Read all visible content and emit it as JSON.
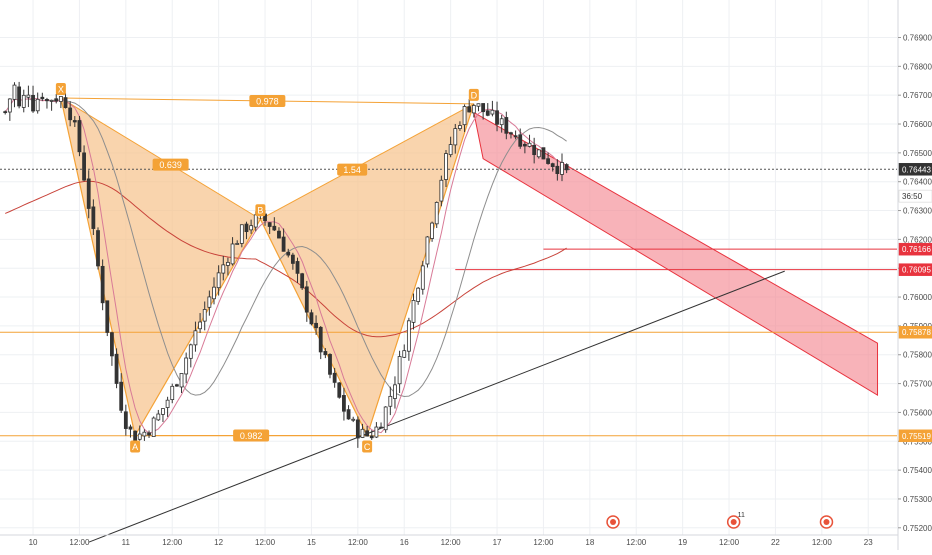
{
  "chart_data": {
    "type": "candlestick",
    "title": "",
    "xlabel": "",
    "ylabel": "",
    "ylim": [
      0.75175,
      0.7703
    ],
    "grid": true,
    "y_ticks": [
      "0.76900",
      "0.76800",
      "0.76700",
      "0.76600",
      "0.76500",
      "0.76400",
      "0.76300",
      "0.76200",
      "0.76100",
      "0.76000",
      "0.75900",
      "0.75800",
      "0.75700",
      "0.75600",
      "0.75500",
      "0.75400",
      "0.75300",
      "0.75200"
    ],
    "x_ticks": [
      {
        "label": "10",
        "i": 6
      },
      {
        "label": "12:00",
        "i": 16
      },
      {
        "label": "11",
        "i": 26
      },
      {
        "label": "12:00",
        "i": 36
      },
      {
        "label": "12",
        "i": 46
      },
      {
        "label": "12:00",
        "i": 56
      },
      {
        "label": "15",
        "i": 66
      },
      {
        "label": "12:00",
        "i": 76
      },
      {
        "label": "16",
        "i": 86
      },
      {
        "label": "12:00",
        "i": 96
      },
      {
        "label": "17",
        "i": 106
      },
      {
        "label": "12:00",
        "i": 116
      },
      {
        "label": "18",
        "i": 126
      },
      {
        "label": "12:00",
        "i": 136
      },
      {
        "label": "19",
        "i": 146
      },
      {
        "label": "12:00",
        "i": 156
      },
      {
        "label": "22",
        "i": 166
      },
      {
        "label": "12:00",
        "i": 176
      },
      {
        "label": "23",
        "i": 186
      }
    ],
    "anchors": [
      {
        "i": 12,
        "p": 0.7669
      },
      {
        "i": 28,
        "p": 0.7552
      },
      {
        "i": 55,
        "p": 0.7627
      },
      {
        "i": 78,
        "p": 0.7552
      },
      {
        "i": 101,
        "p": 0.7667
      }
    ],
    "candle_count": 122,
    "pattern": {
      "points": [
        {
          "label": "X",
          "i": 12,
          "p": 0.7669
        },
        {
          "label": "A",
          "i": 28,
          "p": 0.7552
        },
        {
          "label": "B",
          "i": 55,
          "p": 0.7627
        },
        {
          "label": "C",
          "i": 78,
          "p": 0.7552
        },
        {
          "label": "D",
          "i": 101,
          "p": 0.7667
        }
      ],
      "ratios": [
        {
          "text": "0.978",
          "from": "X",
          "to": "D"
        },
        {
          "text": "0.639",
          "from": "X",
          "to": "B"
        },
        {
          "text": "1.54",
          "from": "B",
          "to": "D"
        },
        {
          "text": "0.982",
          "from": "A",
          "to": "C"
        }
      ]
    },
    "moving_averages": [
      {
        "color": "#c8433a",
        "period": 55
      },
      {
        "color": "#8e8e8e",
        "period": 20
      },
      {
        "color": "#d87a97",
        "period": 6
      }
    ],
    "horizontal_levels": [
      {
        "price": 0.76443,
        "color": "#555555",
        "style": "dotted"
      },
      {
        "price": 0.76166,
        "color": "#e8333e",
        "style": "solid",
        "from_i": 116
      },
      {
        "price": 0.76095,
        "color": "#e8333e",
        "style": "solid",
        "from_i": 97
      },
      {
        "price": 0.75878,
        "color": "#f4a236",
        "style": "solid"
      },
      {
        "price": 0.75519,
        "color": "#f4a236",
        "style": "solid"
      }
    ],
    "price_labels": [
      {
        "text": "0.76443",
        "price": 0.76443,
        "bg": "#333333",
        "fg": "#ffffff"
      },
      {
        "text": "36:50",
        "price": 0.7635,
        "bg": "#ffffff",
        "fg": "#333333"
      },
      {
        "text": "0.76166",
        "price": 0.76166,
        "bg": "#e8333e",
        "fg": "#ffffff"
      },
      {
        "text": "0.76095",
        "price": 0.76095,
        "bg": "#e8333e",
        "fg": "#ffffff"
      },
      {
        "text": "0.75878",
        "price": 0.75878,
        "bg": "#f4a236",
        "fg": "#ffffff"
      },
      {
        "text": "0.75519",
        "price": 0.75519,
        "bg": "#f4a236",
        "fg": "#ffffff"
      }
    ],
    "trendline": {
      "from": {
        "i": 18,
        "p": 0.7515
      },
      "to": {
        "i": 168,
        "p": 0.7609
      }
    },
    "channel": {
      "top_start": {
        "i": 101,
        "p": 0.7664
      },
      "top_end": {
        "i": 188,
        "p": 0.7584
      },
      "bottom_start": {
        "i": 103,
        "p": 0.7648
      },
      "bottom_end": {
        "i": 188,
        "p": 0.7566
      }
    },
    "event_markers": [
      {
        "i": 131,
        "icon": "event-icon",
        "color": "#e8533a"
      },
      {
        "i": 157,
        "icon": "event-icon",
        "color": "#e8533a",
        "count": "11"
      },
      {
        "i": 177,
        "icon": "flag-icon",
        "color": "#e8533a"
      }
    ],
    "colors": {
      "candle": "#333333",
      "pattern_fill": "#f7c28a",
      "pattern_stroke": "#f4a236",
      "channel_fill": "#f58b93",
      "channel_stroke": "#e8333e",
      "grid": "#eef0f3",
      "axis_text": "#4a4a4a",
      "trendline": "#333333"
    }
  }
}
